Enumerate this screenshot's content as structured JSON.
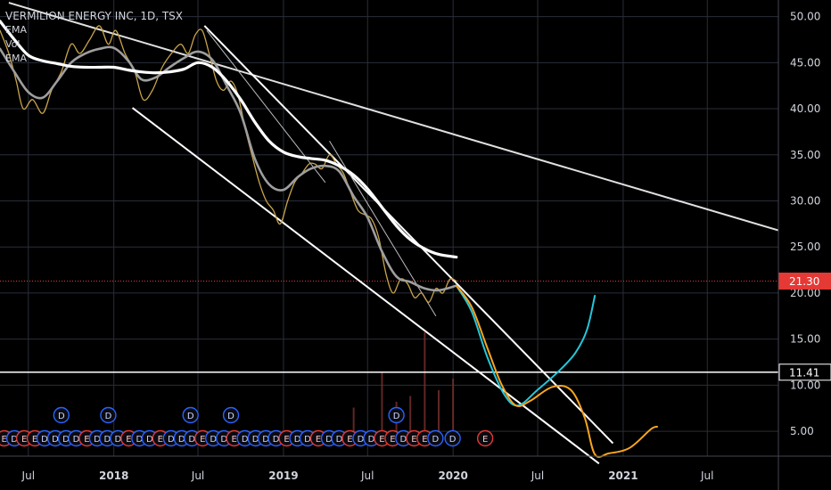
{
  "legend": {
    "title": "VERMILION ENERGY INC, 1D, TSX",
    "items": [
      "EMA",
      "Vol",
      "EMA"
    ]
  },
  "colors": {
    "background": "#000000",
    "grid": "#2a2e39",
    "text": "#d1d4dc",
    "price_line": "#e53935",
    "price_badge": "#e53935",
    "level_badge": "#000000",
    "ema_fast": "#9e9e9e",
    "ema_slow": "#ffffff",
    "forecast_up": "#26c6da",
    "forecast_down": "#f7a520",
    "event_d": "#2962ff",
    "event_e": "#e53935"
  },
  "chart_data": {
    "type": "line",
    "title": "VERMILION ENERGY INC, 1D, TSX",
    "x_range": [
      "2017-05-01",
      "2021-12-01"
    ],
    "y_range": [
      2.3,
      51.8
    ],
    "x_ticks": [
      {
        "label": "Jul",
        "date": "2017-07-01"
      },
      {
        "label": "2018",
        "date": "2018-01-01"
      },
      {
        "label": "Jul",
        "date": "2018-07-01"
      },
      {
        "label": "2019",
        "date": "2019-01-01"
      },
      {
        "label": "Jul",
        "date": "2019-07-01"
      },
      {
        "label": "2020",
        "date": "2020-01-01"
      },
      {
        "label": "Jul",
        "date": "2020-07-01"
      },
      {
        "label": "2021",
        "date": "2021-01-01"
      },
      {
        "label": "Jul",
        "date": "2021-07-01"
      }
    ],
    "y_ticks": [
      "50.00",
      "45.00",
      "40.00",
      "35.00",
      "30.00",
      "25.00",
      "20.00",
      "15.00",
      "10.00",
      "5.00"
    ],
    "last_price": {
      "label": "21.30",
      "value": 21.3
    },
    "level": {
      "label": "11.41",
      "value": 11.41
    },
    "series": [
      {
        "key": "price",
        "points": [
          [
            "2017-05-01",
            48.5
          ],
          [
            "2017-05-20",
            46
          ],
          [
            "2017-06-05",
            43
          ],
          [
            "2017-06-20",
            40
          ],
          [
            "2017-07-10",
            41
          ],
          [
            "2017-08-01",
            39.5
          ],
          [
            "2017-08-20",
            42
          ],
          [
            "2017-09-10",
            44
          ],
          [
            "2017-10-01",
            47
          ],
          [
            "2017-10-20",
            46
          ],
          [
            "2017-11-10",
            47.5
          ],
          [
            "2017-12-01",
            49
          ],
          [
            "2017-12-20",
            47
          ],
          [
            "2018-01-05",
            48.5
          ],
          [
            "2018-01-25",
            46
          ],
          [
            "2018-02-15",
            44
          ],
          [
            "2018-03-05",
            41
          ],
          [
            "2018-03-25",
            42
          ],
          [
            "2018-04-15",
            44.5
          ],
          [
            "2018-05-05",
            46
          ],
          [
            "2018-05-25",
            47
          ],
          [
            "2018-06-10",
            46
          ],
          [
            "2018-06-25",
            48
          ],
          [
            "2018-07-10",
            48.5
          ],
          [
            "2018-07-25",
            46
          ],
          [
            "2018-08-10",
            43
          ],
          [
            "2018-08-25",
            42
          ],
          [
            "2018-09-10",
            43
          ],
          [
            "2018-09-25",
            41.5
          ],
          [
            "2018-10-10",
            38
          ],
          [
            "2018-10-25",
            35
          ],
          [
            "2018-11-10",
            32
          ],
          [
            "2018-11-25",
            30
          ],
          [
            "2018-12-10",
            29
          ],
          [
            "2018-12-25",
            27.5
          ],
          [
            "2019-01-10",
            30
          ],
          [
            "2019-01-25",
            32
          ],
          [
            "2019-02-10",
            33
          ],
          [
            "2019-02-25",
            34
          ],
          [
            "2019-03-10",
            34
          ],
          [
            "2019-03-25",
            33.5
          ],
          [
            "2019-04-10",
            35
          ],
          [
            "2019-04-25",
            34
          ],
          [
            "2019-05-10",
            33
          ],
          [
            "2019-05-25",
            31
          ],
          [
            "2019-06-10",
            29
          ],
          [
            "2019-06-25",
            28.5
          ],
          [
            "2019-07-10",
            28
          ],
          [
            "2019-07-25",
            26
          ],
          [
            "2019-08-10",
            22
          ],
          [
            "2019-08-25",
            20
          ],
          [
            "2019-09-10",
            21.5
          ],
          [
            "2019-09-25",
            21
          ],
          [
            "2019-10-10",
            19.5
          ],
          [
            "2019-10-25",
            20
          ],
          [
            "2019-11-10",
            19
          ],
          [
            "2019-11-25",
            20.5
          ],
          [
            "2019-12-10",
            20
          ],
          [
            "2019-12-25",
            21.5
          ],
          [
            "2020-01-08",
            21.3
          ]
        ],
        "color": "#c9a44c"
      },
      {
        "key": "ema_fast",
        "points": [
          [
            "2017-05-01",
            46.5
          ],
          [
            "2017-06-01",
            44
          ],
          [
            "2017-07-01",
            41.8
          ],
          [
            "2017-08-01",
            41.2
          ],
          [
            "2017-09-01",
            43
          ],
          [
            "2017-10-01",
            45
          ],
          [
            "2017-11-01",
            46
          ],
          [
            "2017-12-01",
            46.5
          ],
          [
            "2018-01-01",
            46.6
          ],
          [
            "2018-02-01",
            45.2
          ],
          [
            "2018-03-01",
            43.2
          ],
          [
            "2018-04-01",
            43.4
          ],
          [
            "2018-05-01",
            44.5
          ],
          [
            "2018-06-01",
            45.5
          ],
          [
            "2018-07-01",
            46.2
          ],
          [
            "2018-08-01",
            45.3
          ],
          [
            "2018-09-01",
            42.5
          ],
          [
            "2018-10-01",
            39.5
          ],
          [
            "2018-11-01",
            34.5
          ],
          [
            "2018-12-01",
            31.8
          ],
          [
            "2019-01-01",
            31.2
          ],
          [
            "2019-02-01",
            32.6
          ],
          [
            "2019-03-01",
            33.5
          ],
          [
            "2019-04-01",
            33.8
          ],
          [
            "2019-05-01",
            33.2
          ],
          [
            "2019-06-01",
            30.5
          ],
          [
            "2019-07-01",
            28.2
          ],
          [
            "2019-08-01",
            24.5
          ],
          [
            "2019-09-01",
            21.8
          ],
          [
            "2019-10-01",
            21.2
          ],
          [
            "2019-11-01",
            20.5
          ],
          [
            "2019-12-01",
            20.3
          ],
          [
            "2020-01-08",
            20.8
          ]
        ],
        "color": "#9e9e9e"
      },
      {
        "key": "ema_slow",
        "points": [
          [
            "2017-05-01",
            49.5
          ],
          [
            "2017-06-01",
            47.5
          ],
          [
            "2017-07-01",
            45.8
          ],
          [
            "2017-08-01",
            45.2
          ],
          [
            "2017-09-01",
            44.9
          ],
          [
            "2017-10-01",
            44.6
          ],
          [
            "2017-11-01",
            44.5
          ],
          [
            "2017-12-01",
            44.5
          ],
          [
            "2018-01-01",
            44.5
          ],
          [
            "2018-02-01",
            44.2
          ],
          [
            "2018-03-01",
            44
          ],
          [
            "2018-04-01",
            43.9
          ],
          [
            "2018-05-01",
            44
          ],
          [
            "2018-06-01",
            44.3
          ],
          [
            "2018-07-01",
            45
          ],
          [
            "2018-08-01",
            44.5
          ],
          [
            "2018-09-01",
            43
          ],
          [
            "2018-10-01",
            41
          ],
          [
            "2018-11-01",
            38.5
          ],
          [
            "2018-12-01",
            36.5
          ],
          [
            "2019-01-01",
            35.3
          ],
          [
            "2019-02-01",
            34.8
          ],
          [
            "2019-03-01",
            34.6
          ],
          [
            "2019-04-01",
            34.4
          ],
          [
            "2019-05-01",
            33.8
          ],
          [
            "2019-06-01",
            32.8
          ],
          [
            "2019-07-01",
            31.3
          ],
          [
            "2019-08-01",
            29.3
          ],
          [
            "2019-09-01",
            27.3
          ],
          [
            "2019-10-01",
            25.8
          ],
          [
            "2019-11-01",
            24.8
          ],
          [
            "2019-12-01",
            24.2
          ],
          [
            "2020-01-08",
            23.9
          ]
        ],
        "color": "#ffffff"
      },
      {
        "key": "forecast_up",
        "points": [
          [
            "2020-01-08",
            20.8
          ],
          [
            "2020-02-10",
            18
          ],
          [
            "2020-03-15",
            13
          ],
          [
            "2020-04-20",
            9
          ],
          [
            "2020-05-20",
            7.8
          ],
          [
            "2020-07-01",
            9.5
          ],
          [
            "2020-08-15",
            11.5
          ],
          [
            "2020-09-20",
            13.5
          ],
          [
            "2020-10-15",
            16
          ],
          [
            "2020-11-01",
            19.7
          ]
        ],
        "color": "#26c6da"
      },
      {
        "key": "forecast_down",
        "points": [
          [
            "2020-01-08",
            20.8
          ],
          [
            "2020-02-10",
            18.5
          ],
          [
            "2020-03-15",
            14
          ],
          [
            "2020-04-15",
            10
          ],
          [
            "2020-05-15",
            7.8
          ],
          [
            "2020-06-15",
            8.3
          ],
          [
            "2020-08-01",
            9.8
          ],
          [
            "2020-09-10",
            9.5
          ],
          [
            "2020-10-10",
            6.5
          ],
          [
            "2020-11-01",
            2.5
          ],
          [
            "2020-12-01",
            2.6
          ],
          [
            "2021-01-15",
            3.2
          ],
          [
            "2021-03-01",
            5.2
          ],
          [
            "2021-03-15",
            5.5
          ]
        ],
        "color": "#f7a520"
      }
    ],
    "trend_lines": [
      {
        "key": "resistance-long",
        "from": [
          "2017-05-20",
          51.5
        ],
        "to": [
          "2021-12-01",
          26.8
        ],
        "color": "#e0e0e0"
      },
      {
        "key": "channel-top",
        "from": [
          "2018-07-15",
          49
        ],
        "to": [
          "2020-12-10",
          3.7
        ],
        "color": "#ffffff"
      },
      {
        "key": "channel-bottom",
        "from": [
          "2018-02-10",
          40.1
        ],
        "to": [
          "2020-11-10",
          1.5
        ],
        "color": "#ffffff"
      },
      {
        "key": "thin-trend-a",
        "from": [
          "2019-04-10",
          36.5
        ],
        "to": [
          "2019-11-25",
          17.5
        ],
        "color": "#bdbdbd"
      },
      {
        "key": "thin-trend-b",
        "from": [
          "2018-07-20",
          48.5
        ],
        "to": [
          "2019-04-01",
          32
        ],
        "color": "#bdbdbd"
      }
    ],
    "volume": [
      [
        "2019-06-01",
        0.25
      ],
      [
        "2019-08-01",
        0.55
      ],
      [
        "2019-09-01",
        0.3
      ],
      [
        "2019-10-01",
        0.35
      ],
      [
        "2019-11-01",
        0.9
      ],
      [
        "2019-12-01",
        0.4
      ],
      [
        "2020-01-01",
        0.5
      ]
    ],
    "events": {
      "dividends": [
        {
          "label": "D",
          "date": "2017-09-10"
        },
        {
          "label": "D",
          "date": "2017-12-20"
        },
        {
          "label": "D",
          "date": "2018-06-15"
        },
        {
          "label": "D",
          "date": "2018-09-10"
        },
        {
          "label": "D",
          "date": "2019-09-01"
        }
      ],
      "row": [
        {
          "label": "E",
          "date": "2017-05-10"
        },
        {
          "label": "D",
          "date": "2017-06-01"
        },
        {
          "label": "E",
          "date": "2017-06-22"
        },
        {
          "label": "E",
          "date": "2017-07-15"
        },
        {
          "label": "D",
          "date": "2017-08-05"
        },
        {
          "label": "D",
          "date": "2017-08-28"
        },
        {
          "label": "D",
          "date": "2017-09-20"
        },
        {
          "label": "D",
          "date": "2017-10-12"
        },
        {
          "label": "E",
          "date": "2017-11-04"
        },
        {
          "label": "D",
          "date": "2017-11-26"
        },
        {
          "label": "D",
          "date": "2017-12-18"
        },
        {
          "label": "D",
          "date": "2018-01-10"
        },
        {
          "label": "E",
          "date": "2018-02-02"
        },
        {
          "label": "D",
          "date": "2018-02-25"
        },
        {
          "label": "D",
          "date": "2018-03-19"
        },
        {
          "label": "E",
          "date": "2018-04-11"
        },
        {
          "label": "D",
          "date": "2018-05-04"
        },
        {
          "label": "D",
          "date": "2018-05-27"
        },
        {
          "label": "D",
          "date": "2018-06-18"
        },
        {
          "label": "E",
          "date": "2018-07-11"
        },
        {
          "label": "D",
          "date": "2018-08-03"
        },
        {
          "label": "D",
          "date": "2018-08-26"
        },
        {
          "label": "E",
          "date": "2018-09-17"
        },
        {
          "label": "D",
          "date": "2018-10-10"
        },
        {
          "label": "D",
          "date": "2018-11-02"
        },
        {
          "label": "D",
          "date": "2018-11-24"
        },
        {
          "label": "D",
          "date": "2018-12-16"
        },
        {
          "label": "E",
          "date": "2019-01-08"
        },
        {
          "label": "D",
          "date": "2019-01-31"
        },
        {
          "label": "D",
          "date": "2019-02-22"
        },
        {
          "label": "E",
          "date": "2019-03-17"
        },
        {
          "label": "D",
          "date": "2019-04-09"
        },
        {
          "label": "D",
          "date": "2019-05-01"
        },
        {
          "label": "E",
          "date": "2019-05-24"
        },
        {
          "label": "D",
          "date": "2019-06-16"
        },
        {
          "label": "D",
          "date": "2019-07-09"
        },
        {
          "label": "E",
          "date": "2019-08-01"
        },
        {
          "label": "E",
          "date": "2019-08-24"
        },
        {
          "label": "D",
          "date": "2019-09-16"
        },
        {
          "label": "E",
          "date": "2019-10-09"
        },
        {
          "label": "E",
          "date": "2019-11-01"
        },
        {
          "label": "D",
          "date": "2019-11-24"
        },
        {
          "label": "D",
          "date": "2019-12-31"
        },
        {
          "label": "E",
          "date": "2020-03-10"
        }
      ]
    }
  }
}
